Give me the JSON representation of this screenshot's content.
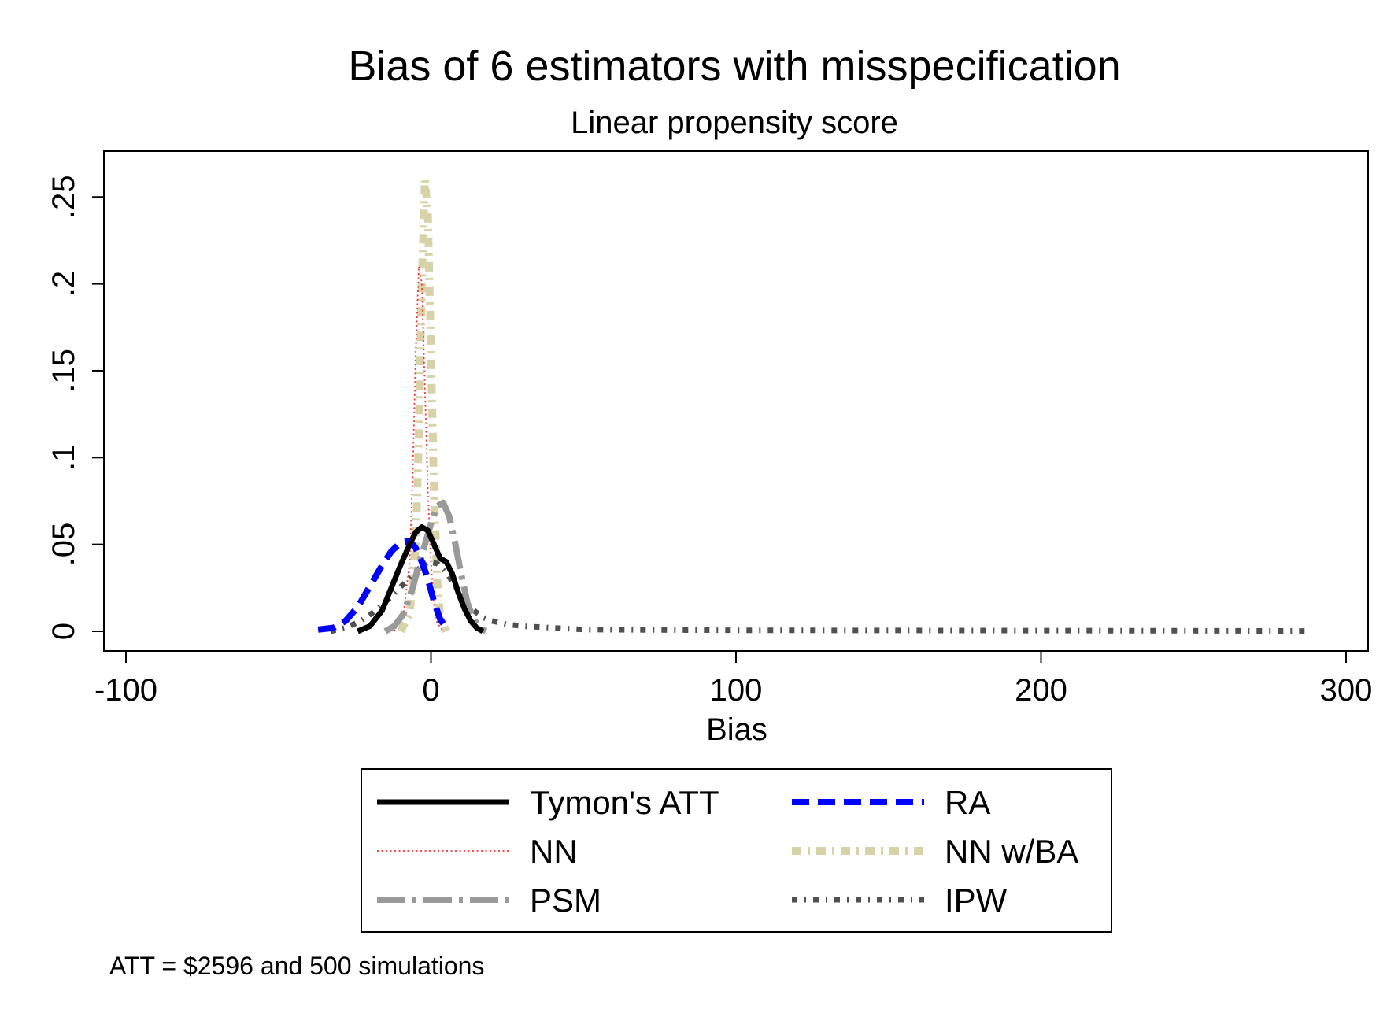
{
  "chart_data": {
    "type": "line",
    "title": "Bias of 6 estimators with misspecification",
    "subtitle": "Linear propensity score",
    "xlabel": "Bias",
    "ylabel": "",
    "xlim": [
      -100,
      300
    ],
    "ylim": [
      0,
      0.27
    ],
    "x_ticks": [
      -100,
      0,
      100,
      200,
      300
    ],
    "x_tick_labels": [
      "-100",
      "0",
      "100",
      "200",
      "300"
    ],
    "y_ticks": [
      0,
      0.05,
      0.1,
      0.15,
      0.2,
      0.25
    ],
    "y_tick_labels": [
      "0",
      ".05",
      ".1",
      ".15",
      ".2",
      ".25"
    ],
    "grid": false,
    "legend_position": "bottom",
    "note": "ATT = $2596 and 500 simulations",
    "series": [
      {
        "name": "Tymon's ATT",
        "color": "#000000",
        "style": "solid",
        "x": [
          -24,
          -20,
          -16,
          -13,
          -10,
          -7,
          -5,
          -3,
          -1,
          1,
          3,
          5,
          7,
          9,
          11,
          13,
          15,
          17
        ],
        "y": [
          0.0,
          0.003,
          0.012,
          0.025,
          0.038,
          0.05,
          0.057,
          0.06,
          0.058,
          0.05,
          0.042,
          0.04,
          0.033,
          0.022,
          0.013,
          0.006,
          0.002,
          0.0
        ]
      },
      {
        "name": "RA",
        "color": "#0000ff",
        "style": "dash",
        "x": [
          -37,
          -32,
          -28,
          -24,
          -20,
          -16,
          -13,
          -10,
          -7,
          -5,
          -3,
          -1,
          1,
          3,
          5
        ],
        "y": [
          0.001,
          0.002,
          0.006,
          0.014,
          0.026,
          0.038,
          0.046,
          0.051,
          0.052,
          0.048,
          0.04,
          0.03,
          0.017,
          0.007,
          0.002
        ]
      },
      {
        "name": "NN",
        "color": "#ff3030",
        "style": "dense-dot",
        "x": [
          -12,
          -9,
          -7,
          -6,
          -5,
          -4,
          -3,
          -2,
          -1,
          0,
          1,
          2,
          4
        ],
        "y": [
          0.0,
          0.01,
          0.04,
          0.09,
          0.16,
          0.21,
          0.2,
          0.14,
          0.08,
          0.04,
          0.015,
          0.005,
          0.0
        ]
      },
      {
        "name": "NN w/BA",
        "color": "#d8d2a8",
        "style": "dash-dot",
        "x": [
          -10,
          -7,
          -5,
          -4,
          -3,
          -2,
          -1,
          0,
          1,
          2,
          3,
          5
        ],
        "y": [
          0.0,
          0.01,
          0.05,
          0.11,
          0.2,
          0.26,
          0.24,
          0.16,
          0.08,
          0.03,
          0.008,
          0.0
        ]
      },
      {
        "name": "PSM",
        "color": "#9a9a9a",
        "style": "long-dash-dot",
        "x": [
          -15,
          -12,
          -9,
          -6,
          -4,
          -2,
          0,
          2,
          4,
          6,
          8,
          10,
          12,
          14,
          16,
          18
        ],
        "y": [
          0.0,
          0.003,
          0.01,
          0.025,
          0.038,
          0.05,
          0.062,
          0.072,
          0.074,
          0.066,
          0.05,
          0.032,
          0.016,
          0.007,
          0.002,
          0.0
        ]
      },
      {
        "name": "IPW",
        "color": "#505050",
        "style": "dot-dash",
        "x": [
          -33,
          -28,
          -23,
          -18,
          -13,
          -8,
          -4,
          -1,
          2,
          5,
          8,
          11,
          14,
          17,
          20,
          25,
          30,
          40,
          50,
          70,
          100,
          150,
          200,
          250,
          287
        ],
        "y": [
          0.0,
          0.002,
          0.006,
          0.012,
          0.02,
          0.029,
          0.036,
          0.04,
          0.039,
          0.034,
          0.026,
          0.018,
          0.012,
          0.008,
          0.006,
          0.004,
          0.003,
          0.002,
          0.001,
          0.0008,
          0.0006,
          0.0005,
          0.0004,
          0.0003,
          0.0002
        ]
      }
    ]
  }
}
